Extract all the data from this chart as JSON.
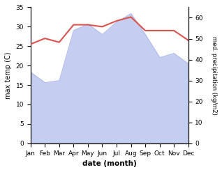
{
  "months": [
    "Jan",
    "Feb",
    "Mar",
    "Apr",
    "May",
    "Jun",
    "Jul",
    "Aug",
    "Sep",
    "Oct",
    "Nov",
    "Dec"
  ],
  "temperature": [
    25.5,
    27.0,
    26.0,
    30.5,
    30.5,
    30.0,
    31.5,
    32.5,
    29.0,
    29.0,
    29.0,
    26.5
  ],
  "precipitation": [
    34,
    29,
    30,
    54,
    57,
    52,
    58,
    62,
    52,
    41,
    43,
    38
  ],
  "temp_color": "#d9534f",
  "precip_fill_color": "#c5cef0",
  "precip_line_color": "#aab4e8",
  "ylabel_left": "max temp (C)",
  "ylabel_right": "med. precipitation (kg/m2)",
  "xlabel": "date (month)",
  "ylim_left": [
    0,
    35
  ],
  "ylim_right": [
    0,
    65
  ],
  "yticks_left": [
    0,
    5,
    10,
    15,
    20,
    25,
    30,
    35
  ],
  "yticks_right": [
    0,
    10,
    20,
    30,
    40,
    50,
    60
  ],
  "background_color": "#ffffff"
}
